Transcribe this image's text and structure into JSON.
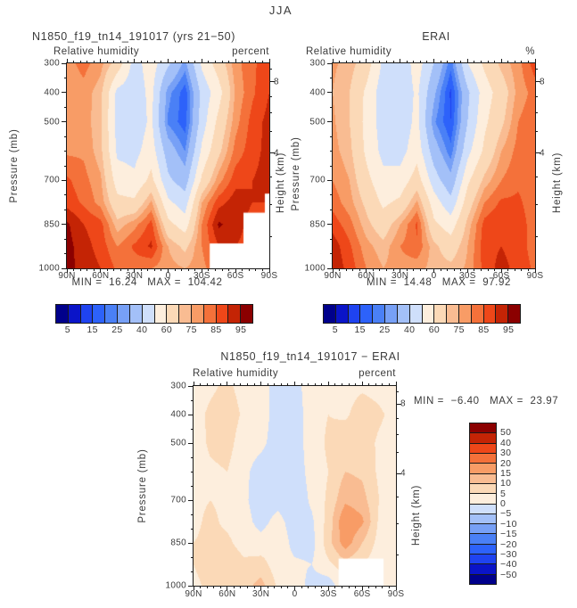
{
  "figure_title": "JJA",
  "palette": [
    "#00008b",
    "#0a14c8",
    "#1f43f0",
    "#2d62fa",
    "#4a80f6",
    "#77a0f6",
    "#a3c0f8",
    "#cfdffb",
    "#fdeedd",
    "#fbd9b7",
    "#f9bc92",
    "#f89c66",
    "#f4713a",
    "#ee4719",
    "#c42405",
    "#8b0000"
  ],
  "chart_data": [
    {
      "type": "contour",
      "title": "N1850_f19_tn14_191017 (yrs 21−50)",
      "subtitle_left": "Relative humidity",
      "subtitle_right": "percent",
      "stats": "MIN =  16.24   MAX =  104.42",
      "pressure_axis_label": "Pressure (mb)",
      "height_axis_label": "Height (km)",
      "x_tick_labels": [
        "90N",
        "60N",
        "30N",
        "0",
        "30S",
        "60S",
        "90S"
      ],
      "y_tick_labels": [
        "300",
        "400",
        "500",
        "700",
        "850",
        "1000"
      ],
      "y_tick_values": [
        300,
        400,
        500,
        700,
        850,
        1000
      ],
      "height_tick_labels": [
        "8",
        "4"
      ],
      "colorbar_labels": [
        "5",
        "15",
        "25",
        "40",
        "60",
        "75",
        "85",
        "95"
      ],
      "levels": [
        5,
        10,
        15,
        20,
        25,
        30,
        40,
        50,
        60,
        70,
        75,
        80,
        85,
        90,
        95
      ],
      "lats": [
        90,
        75,
        60,
        45,
        30,
        15,
        0,
        -15,
        -30,
        -45,
        -60,
        -75,
        -90
      ],
      "pressures": [
        300,
        400,
        500,
        600,
        700,
        775,
        850,
        925,
        1000
      ],
      "values": [
        [
          78,
          82,
          77,
          66,
          46,
          55,
          42,
          28,
          52,
          65,
          78,
          84,
          88
        ],
        [
          76,
          78,
          72,
          47,
          44,
          53,
          27,
          17,
          43,
          56,
          76,
          84,
          90
        ],
        [
          77,
          78,
          71,
          46,
          44,
          52,
          24,
          17,
          45,
          63,
          78,
          87,
          92
        ],
        [
          79,
          79,
          72,
          48,
          47,
          55,
          35,
          25,
          52,
          68,
          82,
          88,
          92
        ],
        [
          86,
          82,
          76,
          55,
          52,
          63,
          42,
          35,
          62,
          78,
          88,
          90,
          92
        ],
        [
          88,
          84,
          78,
          63,
          62,
          76,
          52,
          45,
          75,
          88,
          93,
          90,
          90
        ],
        [
          96,
          90,
          87,
          72,
          78,
          87,
          63,
          55,
          80,
          96,
          92,
          88,
          88
        ],
        [
          97,
          92,
          88,
          80,
          86,
          91,
          75,
          68,
          80,
          90,
          90,
          88,
          88
        ],
        [
          97,
          93,
          90,
          84,
          82,
          80,
          77,
          75,
          78,
          85,
          88,
          88,
          88
        ]
      ],
      "mask": [
        {
          "lat1": -37,
          "lat2": -90,
          "p1": 915,
          "p2": 1000
        },
        {
          "lat1": -67,
          "lat2": -90,
          "p1": 810,
          "p2": 1000
        },
        {
          "lat1": -86,
          "lat2": -90,
          "p1": 745,
          "p2": 1000
        }
      ]
    },
    {
      "type": "contour",
      "title": "ERAI",
      "subtitle_left": "Relative humidity",
      "subtitle_right": "%",
      "stats": "MIN =  14.48   MAX =  97.92",
      "pressure_axis_label": "Pressure (mb)",
      "height_axis_label": "Height (km)",
      "x_tick_labels": [
        "90N",
        "60N",
        "30N",
        "0",
        "30S",
        "60S",
        "90S"
      ],
      "y_tick_labels": [
        "300",
        "400",
        "500",
        "700",
        "850",
        "1000"
      ],
      "y_tick_values": [
        300,
        400,
        500,
        700,
        850,
        1000
      ],
      "height_tick_labels": [
        "8",
        "4"
      ],
      "colorbar_labels": [
        "5",
        "15",
        "25",
        "40",
        "60",
        "75",
        "85",
        "95"
      ],
      "levels": [
        5,
        10,
        15,
        20,
        25,
        30,
        40,
        50,
        60,
        70,
        75,
        80,
        85,
        90,
        95
      ],
      "lats": [
        90,
        75,
        60,
        45,
        30,
        15,
        0,
        -15,
        -30,
        -45,
        -60,
        -75,
        -90
      ],
      "pressures": [
        300,
        400,
        500,
        600,
        700,
        775,
        850,
        925,
        1000
      ],
      "values": [
        [
          76,
          73,
          65,
          48,
          42,
          55,
          40,
          22,
          50,
          62,
          72,
          78,
          88
        ],
        [
          75,
          70,
          58,
          44,
          42,
          52,
          32,
          14,
          38,
          55,
          65,
          77,
          82
        ],
        [
          76,
          70,
          57,
          45,
          43,
          53,
          26,
          15,
          40,
          58,
          68,
          80,
          84
        ],
        [
          77,
          72,
          58,
          47,
          46,
          56,
          35,
          22,
          47,
          62,
          75,
          82,
          84
        ],
        [
          80,
          75,
          63,
          53,
          54,
          65,
          45,
          33,
          58,
          72,
          80,
          84,
          82
        ],
        [
          83,
          77,
          68,
          58,
          62,
          76,
          55,
          43,
          65,
          80,
          86,
          86,
          82
        ],
        [
          88,
          82,
          72,
          65,
          75,
          86,
          62,
          55,
          72,
          87,
          90,
          88,
          82
        ],
        [
          93,
          86,
          77,
          72,
          80,
          84,
          72,
          65,
          75,
          88,
          90,
          87,
          83
        ],
        [
          94,
          88,
          80,
          75,
          78,
          77,
          73,
          72,
          76,
          87,
          92,
          88,
          84
        ]
      ],
      "mask": []
    },
    {
      "type": "contour",
      "title": "N1850_f19_tn14_191017 − ERAI",
      "subtitle_left": "Relative humidity",
      "subtitle_right": "percent",
      "stats": "MIN =  −6.40   MAX =  23.97",
      "pressure_axis_label": "Pressure (mb)",
      "height_axis_label": "Height (km)",
      "x_tick_labels": [
        "90N",
        "60N",
        "30N",
        "0",
        "30S",
        "60S",
        "90S"
      ],
      "y_tick_labels": [
        "300",
        "400",
        "500",
        "700",
        "850",
        "1000"
      ],
      "y_tick_values": [
        300,
        400,
        500,
        700,
        850,
        1000
      ],
      "height_tick_labels": [
        "8",
        "4"
      ],
      "colorbar_labels": [
        "50",
        "40",
        "30",
        "20",
        "15",
        "10",
        "5",
        "0",
        "−5",
        "−10",
        "−15",
        "−20",
        "−30",
        "−40",
        "−50"
      ],
      "levels": [
        -50,
        -40,
        -30,
        -20,
        -15,
        -10,
        -5,
        0,
        5,
        10,
        15,
        20,
        30,
        40,
        50
      ],
      "lats": [
        90,
        75,
        60,
        45,
        30,
        15,
        0,
        -15,
        -30,
        -45,
        -60,
        -75,
        -90
      ],
      "pressures": [
        300,
        400,
        500,
        600,
        700,
        775,
        850,
        925,
        1000
      ],
      "values": [
        [
          2,
          4,
          6,
          3,
          1,
          -1,
          -2,
          3,
          4,
          3,
          4,
          3,
          1
        ],
        [
          3,
          6,
          8,
          4,
          2,
          -2,
          -3,
          3,
          5,
          4,
          8,
          6,
          3
        ],
        [
          2,
          6,
          7,
          2,
          1,
          -2,
          -2,
          2,
          6,
          9,
          8,
          4,
          2
        ],
        [
          2,
          4,
          5,
          1,
          -2,
          -2,
          -3,
          2,
          5,
          10,
          9,
          4,
          1
        ],
        [
          4,
          5,
          4,
          1,
          -3,
          -2,
          -4,
          1,
          6,
          14,
          12,
          5,
          2
        ],
        [
          4,
          6,
          4,
          2,
          -2,
          2,
          -3,
          -1,
          7,
          20,
          16,
          4,
          3
        ],
        [
          5,
          6,
          6,
          3,
          2,
          4,
          -2,
          -2,
          8,
          18,
          10,
          3,
          2
        ],
        [
          5,
          7,
          8,
          6,
          7,
          2,
          1,
          0,
          4,
          8,
          5,
          2,
          2
        ],
        [
          4,
          6,
          9,
          8,
          12,
          4,
          3,
          -2,
          -3,
          4,
          4,
          2,
          2
        ]
      ],
      "mask": [
        {
          "lat1": -39,
          "lat2": -79,
          "p1": 905,
          "p2": 1000
        }
      ]
    }
  ]
}
